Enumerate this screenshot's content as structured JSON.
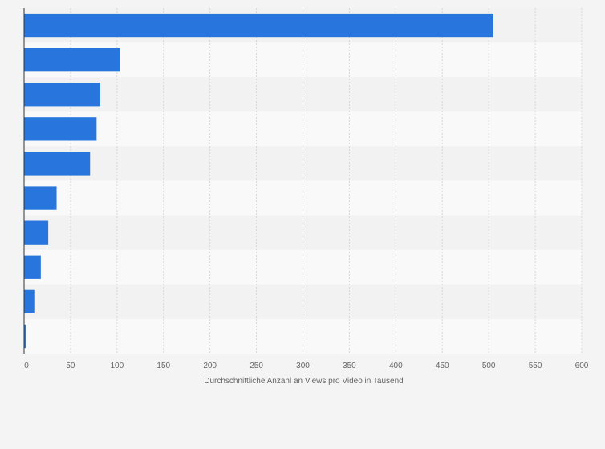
{
  "chart_data": {
    "type": "bar",
    "orientation": "horizontal",
    "title": "",
    "xlabel": "Durchschnittliche Anzahl an Views pro Video in Tausend",
    "ylabel": "",
    "categories": [
      "",
      "",
      "",
      "",
      "",
      "",
      "",
      "",
      "",
      ""
    ],
    "values": [
      505,
      103,
      82,
      78,
      71,
      35,
      26,
      18,
      11,
      2
    ],
    "xlim": [
      0,
      600
    ],
    "xticks": [
      0,
      50,
      100,
      150,
      200,
      250,
      300,
      350,
      400,
      450,
      500,
      550,
      600
    ],
    "xtick_labels": [
      "0",
      "50",
      "100",
      "150",
      "200",
      "250",
      "300",
      "350",
      "400",
      "450",
      "500",
      "550",
      "600"
    ],
    "grid": true,
    "legend": "none"
  },
  "colors": {
    "bar": "#2876dd",
    "page_background": "#f4f4f4",
    "band_light": "#f9f9f9",
    "band_dark": "#f2f2f2",
    "gridline": "#d7d7d7",
    "axis_line": "#333333",
    "text": "#666666"
  }
}
